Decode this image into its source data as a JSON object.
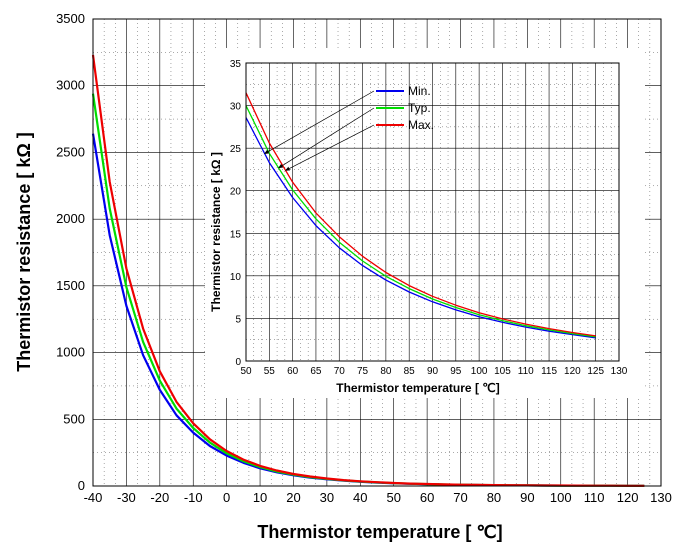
{
  "chart_data": [
    {
      "type": "line",
      "title": "",
      "xlabel": "Thermistor temperature [ ℃]",
      "ylabel": "Thermistor resistance [ kΩ ]",
      "xlim": [
        -40,
        130
      ],
      "ylim": [
        0,
        3500
      ],
      "xticks": [
        -40,
        -30,
        -20,
        -10,
        0,
        10,
        20,
        30,
        40,
        50,
        60,
        70,
        80,
        90,
        100,
        110,
        120,
        130
      ],
      "yticks": [
        0,
        500,
        1000,
        1500,
        2000,
        2500,
        3000,
        3500
      ],
      "grid": true,
      "x": [
        -40,
        -35,
        -30,
        -25,
        -20,
        -15,
        -10,
        -5,
        0,
        5,
        10,
        15,
        20,
        25,
        30,
        35,
        40,
        45,
        50,
        55,
        60,
        65,
        70,
        75,
        80,
        85,
        90,
        95,
        100,
        105,
        110,
        115,
        120,
        125
      ],
      "series": [
        {
          "name": "Min.",
          "color": "#0000ee",
          "values": [
            2640,
            1880,
            1350,
            980,
            720,
            530,
            400,
            300,
            228,
            174,
            133,
            103,
            80,
            63,
            50,
            39.5,
            31.5,
            25.2,
            20.2,
            16.3,
            13.3,
            10.8,
            8.9,
            7.35,
            6.1,
            5.1,
            4.3,
            3.6,
            3.05,
            2.6,
            2.22,
            1.9,
            1.64,
            1.42
          ]
        },
        {
          "name": "Typ.",
          "color": "#00dd00",
          "values": [
            2940,
            2080,
            1490,
            1080,
            790,
            580,
            435,
            325,
            245,
            186,
            142,
            109,
            85,
            67,
            53,
            42,
            33.5,
            26.8,
            21.5,
            17.3,
            14.1,
            11.5,
            9.4,
            7.75,
            6.45,
            5.4,
            4.5,
            3.8,
            3.2,
            2.72,
            2.32,
            1.99,
            1.71,
            1.48
          ]
        },
        {
          "name": "Max.",
          "color": "#ee0000",
          "values": [
            3230,
            2280,
            1630,
            1180,
            860,
            630,
            470,
            350,
            262,
            198,
            151,
            116,
            90,
            71,
            56,
            44.5,
            35.5,
            28.4,
            22.8,
            18.3,
            14.9,
            12.2,
            10,
            8.2,
            6.8,
            5.7,
            4.75,
            4,
            3.38,
            2.87,
            2.45,
            2.1,
            1.8,
            1.56
          ]
        }
      ]
    },
    {
      "type": "line",
      "title": "",
      "xlabel": "Thermistor temperature [ ℃]",
      "ylabel": "Thermistor resistance [ kΩ ]",
      "xlim": [
        50,
        130
      ],
      "ylim": [
        0,
        35
      ],
      "xticks": [
        50,
        55,
        60,
        65,
        70,
        75,
        80,
        85,
        90,
        95,
        100,
        105,
        110,
        115,
        120,
        125,
        130
      ],
      "yticks": [
        0,
        5,
        10,
        15,
        20,
        25,
        30,
        35
      ],
      "grid": true,
      "legend": "top-left, with arrows pointing to curves",
      "x": [
        50,
        55,
        60,
        65,
        70,
        75,
        80,
        85,
        90,
        95,
        100,
        105,
        110,
        115,
        120,
        125
      ],
      "series": [
        {
          "name": "Min.",
          "color": "#0000ee",
          "values": [
            28.6,
            23.3,
            19.2,
            15.9,
            13.3,
            11.2,
            9.5,
            8.1,
            6.95,
            6.0,
            5.2,
            4.55,
            3.98,
            3.5,
            3.1,
            2.72
          ]
        },
        {
          "name": "Typ.",
          "color": "#00dd00",
          "values": [
            30.0,
            24.4,
            20.1,
            16.7,
            13.95,
            11.75,
            9.95,
            8.5,
            7.28,
            6.28,
            5.44,
            4.75,
            4.15,
            3.65,
            3.22,
            2.84
          ]
        },
        {
          "name": "Max.",
          "color": "#ee0000",
          "values": [
            31.5,
            25.6,
            21.0,
            17.4,
            14.6,
            12.3,
            10.4,
            8.85,
            7.6,
            6.55,
            5.67,
            4.95,
            4.33,
            3.8,
            3.35,
            2.95
          ]
        }
      ]
    }
  ]
}
